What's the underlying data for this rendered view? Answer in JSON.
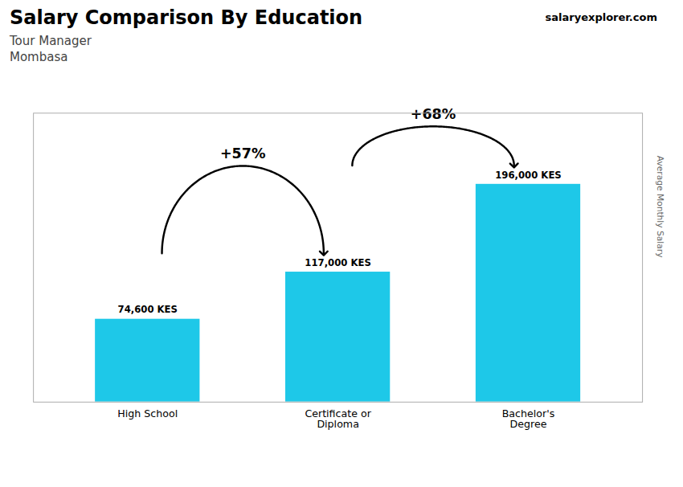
{
  "chart_data": {
    "type": "bar",
    "title": "Salary Comparison By Education",
    "subtitle": [
      "Tour Manager",
      "Mombasa"
    ],
    "ylabel": "Average Monthly Salary",
    "categories": [
      "High School",
      "Certificate or\nDiploma",
      "Bachelor's\nDegree"
    ],
    "values": [
      74600,
      117000,
      196000
    ],
    "value_labels": [
      "74,600 KES",
      "117,000 KES",
      "196,000 KES"
    ],
    "data_labels": true,
    "color": "#1EC8E8",
    "ylim": [
      0,
      260000
    ],
    "yticks": [],
    "tick_labels": "x",
    "annotations": [
      {
        "text": "+57%",
        "from": "High School",
        "to": "Certificate or\nDiploma"
      },
      {
        "text": "+68%",
        "from": "Certificate or\nDiploma",
        "to": "Bachelor's\nDegree"
      },
      {
        "text": "salaryexplorer.com"
      }
    ]
  }
}
